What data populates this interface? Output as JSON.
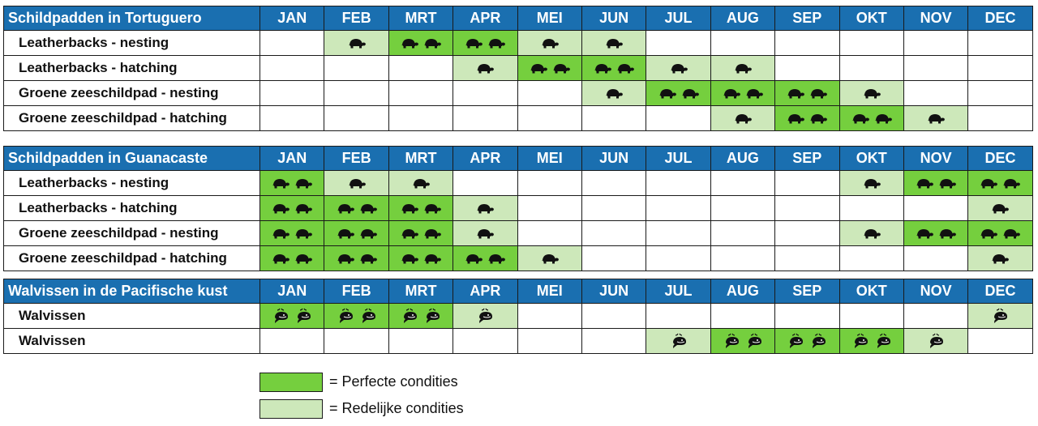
{
  "colors": {
    "header": "#1a6fb0",
    "perfect": "#75cf3e",
    "reasonable": "#cde8ba"
  },
  "icons": {
    "turtle": "turtle-icon",
    "whale": "whale-icon"
  },
  "tables": [
    {
      "title": "Schildpadden in Tortuguero",
      "icon": "turtle",
      "months": [
        "JAN",
        "FEB",
        "MRT",
        "APR",
        "MEI",
        "JUN",
        "JUL",
        "AUG",
        "SEP",
        "OKT",
        "NOV",
        "DEC"
      ],
      "rows": [
        {
          "label": "Leatherbacks - nesting",
          "levels": [
            0,
            1,
            2,
            2,
            1,
            1,
            0,
            0,
            0,
            0,
            0,
            0
          ]
        },
        {
          "label": "Leatherbacks - hatching",
          "levels": [
            0,
            0,
            0,
            1,
            2,
            2,
            1,
            1,
            0,
            0,
            0,
            0
          ]
        },
        {
          "label": "Groene zeeschildpad - nesting",
          "levels": [
            0,
            0,
            0,
            0,
            0,
            1,
            2,
            2,
            2,
            1,
            0,
            0
          ]
        },
        {
          "label": "Groene zeeschildpad - hatching",
          "levels": [
            0,
            0,
            0,
            0,
            0,
            0,
            0,
            1,
            2,
            2,
            1,
            0
          ]
        }
      ]
    },
    {
      "title": "Schildpadden in Guanacaste",
      "icon": "turtle",
      "months": [
        "JAN",
        "FEB",
        "MRT",
        "APR",
        "MEI",
        "JUN",
        "JUL",
        "AUG",
        "SEP",
        "OKT",
        "NOV",
        "DEC"
      ],
      "rows": [
        {
          "label": "Leatherbacks - nesting",
          "levels": [
            2,
            1,
            1,
            0,
            0,
            0,
            0,
            0,
            0,
            1,
            2,
            2
          ]
        },
        {
          "label": "Leatherbacks - hatching",
          "levels": [
            2,
            2,
            2,
            1,
            0,
            0,
            0,
            0,
            0,
            0,
            0,
            1
          ]
        },
        {
          "label": "Groene zeeschildpad - nesting",
          "levels": [
            2,
            2,
            2,
            1,
            0,
            0,
            0,
            0,
            0,
            1,
            2,
            2
          ]
        },
        {
          "label": "Groene zeeschildpad - hatching",
          "levels": [
            2,
            2,
            2,
            2,
            1,
            0,
            0,
            0,
            0,
            0,
            0,
            1
          ]
        }
      ]
    },
    {
      "title": "Walvissen in de Pacifische kust",
      "icon": "whale",
      "months": [
        "JAN",
        "FEB",
        "MRT",
        "APR",
        "MEI",
        "JUN",
        "JUL",
        "AUG",
        "SEP",
        "OKT",
        "NOV",
        "DEC"
      ],
      "rows": [
        {
          "label": "Walvissen",
          "levels": [
            2,
            2,
            2,
            1,
            0,
            0,
            0,
            0,
            0,
            0,
            0,
            1
          ]
        },
        {
          "label": "Walvissen",
          "levels": [
            0,
            0,
            0,
            0,
            0,
            0,
            1,
            2,
            2,
            2,
            1,
            0
          ]
        }
      ]
    }
  ],
  "legend": {
    "perfect": "= Perfecte condities",
    "reasonable": "= Redelijke condities"
  }
}
